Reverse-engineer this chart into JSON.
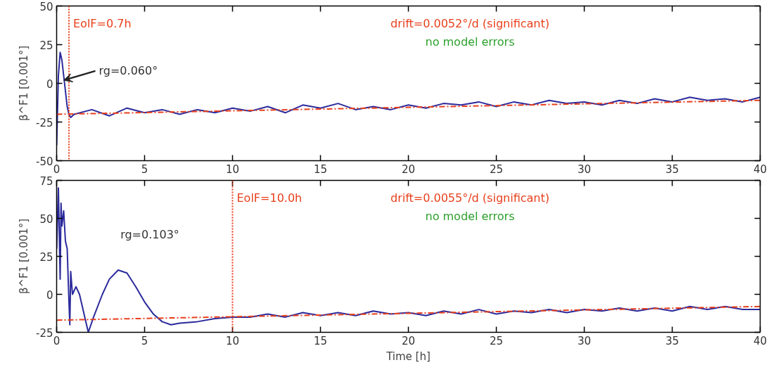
{
  "chart_data": [
    {
      "type": "line",
      "ylabel": "β^F1 [0.001°]",
      "xlim": [
        0,
        40
      ],
      "ylim": [
        -50,
        50
      ],
      "xticks": [
        0,
        5,
        10,
        15,
        20,
        25,
        30,
        35,
        40
      ],
      "yticks": [
        -50,
        -25,
        0,
        25,
        50
      ],
      "grid": false,
      "series": [
        {
          "color": "#2b2a9c",
          "x": [
            0,
            0.1,
            0.2,
            0.3,
            0.4,
            0.5,
            0.6,
            0.7,
            0.8,
            1,
            2,
            3,
            4,
            5,
            6,
            7,
            8,
            9,
            10,
            11,
            12,
            13,
            14,
            15,
            16,
            17,
            18,
            19,
            20,
            21,
            22,
            23,
            24,
            25,
            26,
            27,
            28,
            29,
            30,
            31,
            32,
            33,
            34,
            35,
            36,
            37,
            38,
            39,
            40
          ],
          "values": [
            -40,
            5,
            20,
            15,
            5,
            -5,
            -15,
            -20,
            -22,
            -20,
            -17,
            -21,
            -16,
            -19,
            -17,
            -20,
            -17,
            -19,
            -16,
            -18,
            -15,
            -19,
            -14,
            -16,
            -13,
            -17,
            -15,
            -17,
            -14,
            -16,
            -13,
            -14,
            -12,
            -15,
            -12,
            -14,
            -11,
            -13,
            -12,
            -14,
            -11,
            -13,
            -10,
            -12,
            -9,
            -11,
            -10,
            -12,
            -9
          ]
        },
        {
          "color": "#e8401c",
          "type": "line",
          "line_style": "dashed",
          "x": [
            0,
            40
          ],
          "values": [
            -20,
            -11
          ]
        }
      ],
      "ref_lines": [
        {
          "axis": "x",
          "value": 0.7,
          "label": "EolF=0.7h",
          "color": "#e8401c",
          "line_style": "dotted"
        }
      ],
      "annotations": [
        {
          "text": "rg=0.060°",
          "x": 0.4,
          "y": 2
        },
        "drift=0.0052°/d (significant)",
        "no model errors"
      ]
    },
    {
      "type": "line",
      "xlabel": "Time [h]",
      "ylabel": "β^F1 [0.001°]",
      "xlim": [
        0,
        40
      ],
      "ylim": [
        -25,
        75
      ],
      "xticks": [
        0,
        5,
        10,
        15,
        20,
        25,
        30,
        35,
        40
      ],
      "yticks": [
        -25,
        0,
        25,
        50,
        75
      ],
      "grid": false,
      "series": [
        {
          "color": "#2b2a9c",
          "x": [
            0,
            0.1,
            0.2,
            0.25,
            0.3,
            0.4,
            0.5,
            0.6,
            0.7,
            0.75,
            0.8,
            0.9,
            1.1,
            1.3,
            1.6,
            1.8,
            2.1,
            2.6,
            3,
            3.5,
            4,
            4.5,
            5,
            5.5,
            6,
            6.5,
            7,
            8,
            9,
            10,
            11,
            12,
            13,
            14,
            15,
            16,
            17,
            18,
            19,
            20,
            21,
            22,
            23,
            24,
            25,
            26,
            27,
            28,
            29,
            30,
            31,
            32,
            33,
            34,
            35,
            36,
            37,
            38,
            39,
            40
          ],
          "values": [
            30,
            70,
            10,
            60,
            45,
            55,
            35,
            30,
            -5,
            -20,
            15,
            0,
            5,
            0,
            -15,
            -25,
            -15,
            0,
            10,
            16,
            14,
            5,
            -5,
            -13,
            -18,
            -20,
            -19,
            -18,
            -16,
            -15,
            -15,
            -13,
            -15,
            -12,
            -14,
            -12,
            -14,
            -11,
            -13,
            -12,
            -14,
            -11,
            -13,
            -10,
            -13,
            -11,
            -12,
            -10,
            -12,
            -10,
            -11,
            -9,
            -11,
            -9,
            -11,
            -8,
            -10,
            -8,
            -10,
            -10
          ]
        },
        {
          "color": "#e8401c",
          "type": "line",
          "line_style": "dashed",
          "x": [
            0,
            40
          ],
          "values": [
            -17,
            -8
          ]
        }
      ],
      "ref_lines": [
        {
          "axis": "x",
          "value": 10,
          "label": "EolF=10.0h",
          "color": "#e8401c",
          "line_style": "dotted"
        }
      ],
      "annotations": [
        "rg=0.103°",
        "drift=0.0055°/d (significant)",
        "no model errors"
      ]
    }
  ]
}
